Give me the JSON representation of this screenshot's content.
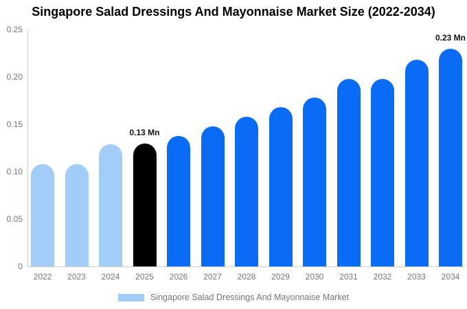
{
  "chart_data": {
    "type": "bar",
    "title": "Singapore Salad Dressings And Mayonnaise Market Size (2022-2034)",
    "categories": [
      "2022",
      "2023",
      "2024",
      "2025",
      "2026",
      "2027",
      "2028",
      "2029",
      "2030",
      "2031",
      "2032",
      "2033",
      "2034"
    ],
    "values": [
      0.108,
      0.108,
      0.129,
      0.13,
      0.138,
      0.148,
      0.158,
      0.168,
      0.178,
      0.198,
      0.198,
      0.218,
      0.23
    ],
    "unit": "Mn",
    "xlabel": "",
    "ylabel": "",
    "ylim": [
      0,
      0.25
    ],
    "yticks": [
      0,
      0.05,
      0.1,
      0.15,
      0.2,
      0.25
    ],
    "ytick_labels": [
      "0",
      "0.05",
      "0.10",
      "0.15",
      "0.20",
      "0.25"
    ],
    "grid": false,
    "bar_colors": [
      "#A2CDF9",
      "#A2CDF9",
      "#A2CDF9",
      "#000000",
      "#0A6BF5",
      "#0A6BF5",
      "#0A6BF5",
      "#0A6BF5",
      "#0A6BF5",
      "#0A6BF5",
      "#0A6BF5",
      "#0A6BF5",
      "#0A6BF5"
    ],
    "annotations": [
      {
        "category": "2025",
        "text": "0.13 Mn"
      },
      {
        "category": "2034",
        "text": "0.23 Mn"
      }
    ],
    "legend": {
      "label": "Singapore Salad Dressings And Mayonnaise Market",
      "position": "bottom",
      "swatch_color": "#A2CDF9"
    },
    "colors": {
      "background": "#FFFFFF",
      "axis_line": "#CCCCCC",
      "axis_label": "#757575",
      "title": "#000000",
      "annotation": "#111111"
    }
  }
}
